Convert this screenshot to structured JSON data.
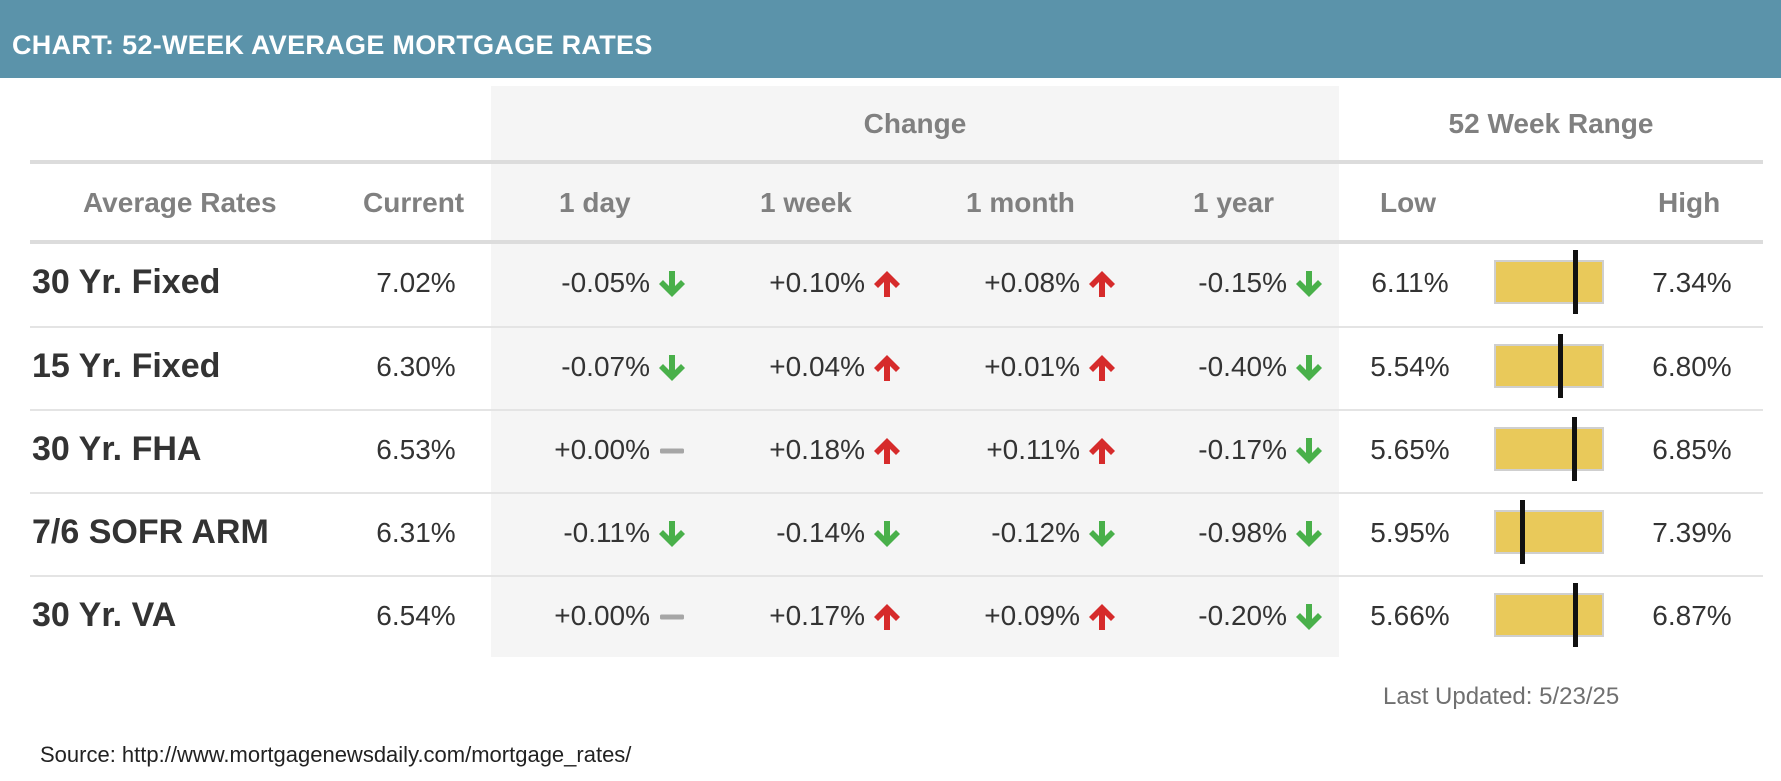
{
  "header": {
    "title": "CHART: 52-WEEK AVERAGE MORTGAGE RATES"
  },
  "group_headers": {
    "change": "Change",
    "range": "52 Week Range"
  },
  "columns": {
    "rates": "Average Rates",
    "current": "Current",
    "day": "1 day",
    "week": "1 week",
    "month": "1 month",
    "year": "1 year",
    "low": "Low",
    "high": "High"
  },
  "colors": {
    "banner": "#5b93aa",
    "up": "#d62b2b",
    "down": "#49b04a",
    "flat": "#a6a6a6",
    "range_bar": "#e9c95a"
  },
  "chart_data": {
    "type": "table",
    "title": "CHART: 52-WEEK AVERAGE MORTGAGE RATES",
    "rows": [
      {
        "name": "30 Yr. Fixed",
        "current": "7.02%",
        "changes": [
          {
            "value": "-0.05%",
            "dir": "down"
          },
          {
            "value": "+0.10%",
            "dir": "up"
          },
          {
            "value": "+0.08%",
            "dir": "up"
          },
          {
            "value": "-0.15%",
            "dir": "down"
          }
        ],
        "low": "6.11%",
        "high": "7.34%",
        "range_position": 0.74
      },
      {
        "name": "15 Yr. Fixed",
        "current": "6.30%",
        "changes": [
          {
            "value": "-0.07%",
            "dir": "down"
          },
          {
            "value": "+0.04%",
            "dir": "up"
          },
          {
            "value": "+0.01%",
            "dir": "up"
          },
          {
            "value": "-0.40%",
            "dir": "down"
          }
        ],
        "low": "5.54%",
        "high": "6.80%",
        "range_position": 0.6
      },
      {
        "name": "30 Yr. FHA",
        "current": "6.53%",
        "changes": [
          {
            "value": "+0.00%",
            "dir": "flat"
          },
          {
            "value": "+0.18%",
            "dir": "up"
          },
          {
            "value": "+0.11%",
            "dir": "up"
          },
          {
            "value": "-0.17%",
            "dir": "down"
          }
        ],
        "low": "5.65%",
        "high": "6.85%",
        "range_position": 0.73
      },
      {
        "name": "7/6 SOFR ARM",
        "current": "6.31%",
        "changes": [
          {
            "value": "-0.11%",
            "dir": "down"
          },
          {
            "value": "-0.14%",
            "dir": "down"
          },
          {
            "value": "-0.12%",
            "dir": "down"
          },
          {
            "value": "-0.98%",
            "dir": "down"
          }
        ],
        "low": "5.95%",
        "high": "7.39%",
        "range_position": 0.25
      },
      {
        "name": "30 Yr. VA",
        "current": "6.54%",
        "changes": [
          {
            "value": "+0.00%",
            "dir": "flat"
          },
          {
            "value": "+0.17%",
            "dir": "up"
          },
          {
            "value": "+0.09%",
            "dir": "up"
          },
          {
            "value": "-0.20%",
            "dir": "down"
          }
        ],
        "low": "5.66%",
        "high": "6.87%",
        "range_position": 0.74
      }
    ]
  },
  "footer": {
    "updated": "Last Updated: 5/23/25",
    "source": "Source: http://www.mortgagenewsdaily.com/mortgage_rates/"
  }
}
